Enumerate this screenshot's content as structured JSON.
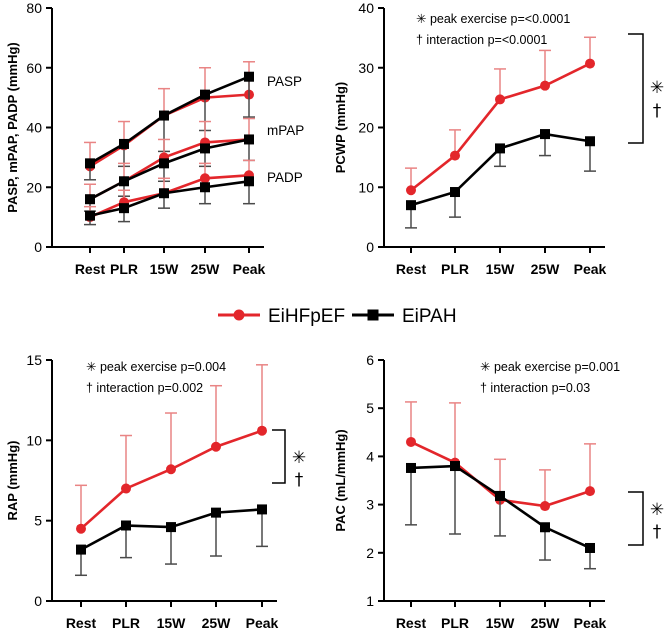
{
  "colors": {
    "EiHFpEF": "#e3262b",
    "EiPAH": "#000000",
    "error_red": "#e98484",
    "error_black": "#4a4a4a"
  },
  "legend": {
    "entries": [
      {
        "name": "EiHFpEF",
        "marker": "circle"
      },
      {
        "name": "EiPAH",
        "marker": "square"
      }
    ]
  },
  "chart_data": [
    {
      "id": "pressures",
      "type": "line",
      "ylabel": "PASP, mPAP, PADP (mmHg)",
      "ylim": [
        0,
        80
      ],
      "yticks": [
        0,
        20,
        40,
        60,
        80
      ],
      "categories": [
        "Rest",
        "PLR",
        "15W",
        "25W",
        "Peak"
      ],
      "series": [
        {
          "name": "EiHFpEF",
          "label": "PASP",
          "values": [
            27,
            34,
            44,
            50,
            51
          ],
          "err": [
            8,
            8,
            9,
            10,
            11
          ]
        },
        {
          "name": "EiPAH",
          "label": "",
          "values": [
            28,
            34.5,
            44,
            51,
            57
          ],
          "err": [
            5.5,
            7.5,
            12,
            12,
            13.5
          ]
        },
        {
          "name": "EiHFpEF",
          "label": "mPAP",
          "values": [
            16,
            22,
            30,
            35,
            36
          ],
          "err": [
            5,
            6,
            6,
            7,
            7
          ]
        },
        {
          "name": "EiPAH",
          "label": "",
          "values": [
            16,
            22,
            28,
            33,
            36
          ],
          "err": [
            4,
            5,
            6,
            6,
            7
          ]
        },
        {
          "name": "EiHFpEF",
          "label": "PADP",
          "values": [
            10,
            15,
            18,
            23,
            24
          ],
          "err": [
            3.5,
            4,
            5,
            5,
            5
          ]
        },
        {
          "name": "EiPAH",
          "label": "",
          "values": [
            10.5,
            13,
            18,
            20,
            22
          ],
          "err": [
            3,
            4.5,
            5,
            5.5,
            7.5
          ]
        }
      ],
      "annotations": []
    },
    {
      "id": "pcwp",
      "type": "line",
      "ylabel": "PCWP (mmHg)",
      "ylim": [
        0,
        40
      ],
      "yticks": [
        0,
        10,
        20,
        30,
        40
      ],
      "categories": [
        "Rest",
        "PLR",
        "15W",
        "25W",
        "Peak"
      ],
      "series": [
        {
          "name": "EiHFpEF",
          "label": "",
          "values": [
            9.5,
            15.3,
            24.7,
            27,
            30.7
          ],
          "err": [
            3.7,
            4.3,
            5.1,
            5.9,
            4.4
          ]
        },
        {
          "name": "EiPAH",
          "label": "",
          "values": [
            7,
            9.2,
            16.5,
            18.9,
            17.7
          ],
          "err": [
            3.8,
            4.2,
            3.0,
            3.6,
            5.0
          ]
        }
      ],
      "annotations": [
        "✳ peak exercise p=<0.0001",
        "† interaction p=<0.0001"
      ],
      "bracket_symbols": [
        "✳",
        "†"
      ]
    },
    {
      "id": "rap",
      "type": "line",
      "ylabel": "RAP (mmHg)",
      "ylim": [
        0,
        15
      ],
      "yticks": [
        0,
        5,
        10,
        15
      ],
      "categories": [
        "Rest",
        "PLR",
        "15W",
        "25W",
        "Peak"
      ],
      "series": [
        {
          "name": "EiHFpEF",
          "label": "",
          "values": [
            4.5,
            7.0,
            8.2,
            9.6,
            10.6
          ],
          "err": [
            2.7,
            3.3,
            3.5,
            3.8,
            4.1
          ]
        },
        {
          "name": "EiPAH",
          "label": "",
          "values": [
            3.2,
            4.7,
            4.6,
            5.5,
            5.7
          ],
          "err": [
            1.6,
            2.0,
            2.3,
            2.7,
            2.3
          ]
        }
      ],
      "annotations": [
        "✳ peak exercise p=0.004",
        "† interaction p=0.002"
      ],
      "bracket_symbols": [
        "✳",
        "†"
      ]
    },
    {
      "id": "pac",
      "type": "line",
      "ylabel": "PAC (mL/mmHg)",
      "ylim": [
        1,
        6
      ],
      "yticks": [
        1,
        2,
        3,
        4,
        5,
        6
      ],
      "categories": [
        "Rest",
        "PLR",
        "15W",
        "25W",
        "Peak"
      ],
      "series": [
        {
          "name": "EiHFpEF",
          "label": "",
          "values": [
            4.3,
            3.87,
            3.1,
            2.97,
            3.28
          ],
          "err": [
            0.83,
            1.24,
            0.84,
            0.75,
            0.98
          ]
        },
        {
          "name": "EiPAH",
          "label": "",
          "values": [
            3.76,
            3.8,
            3.18,
            2.53,
            2.1
          ],
          "err": [
            1.18,
            1.41,
            0.83,
            0.68,
            0.43
          ]
        }
      ],
      "annotations": [
        "✳ peak exercise p=0.001",
        "† interaction p=0.03"
      ],
      "bracket_symbols": [
        "✳",
        "†"
      ]
    }
  ]
}
